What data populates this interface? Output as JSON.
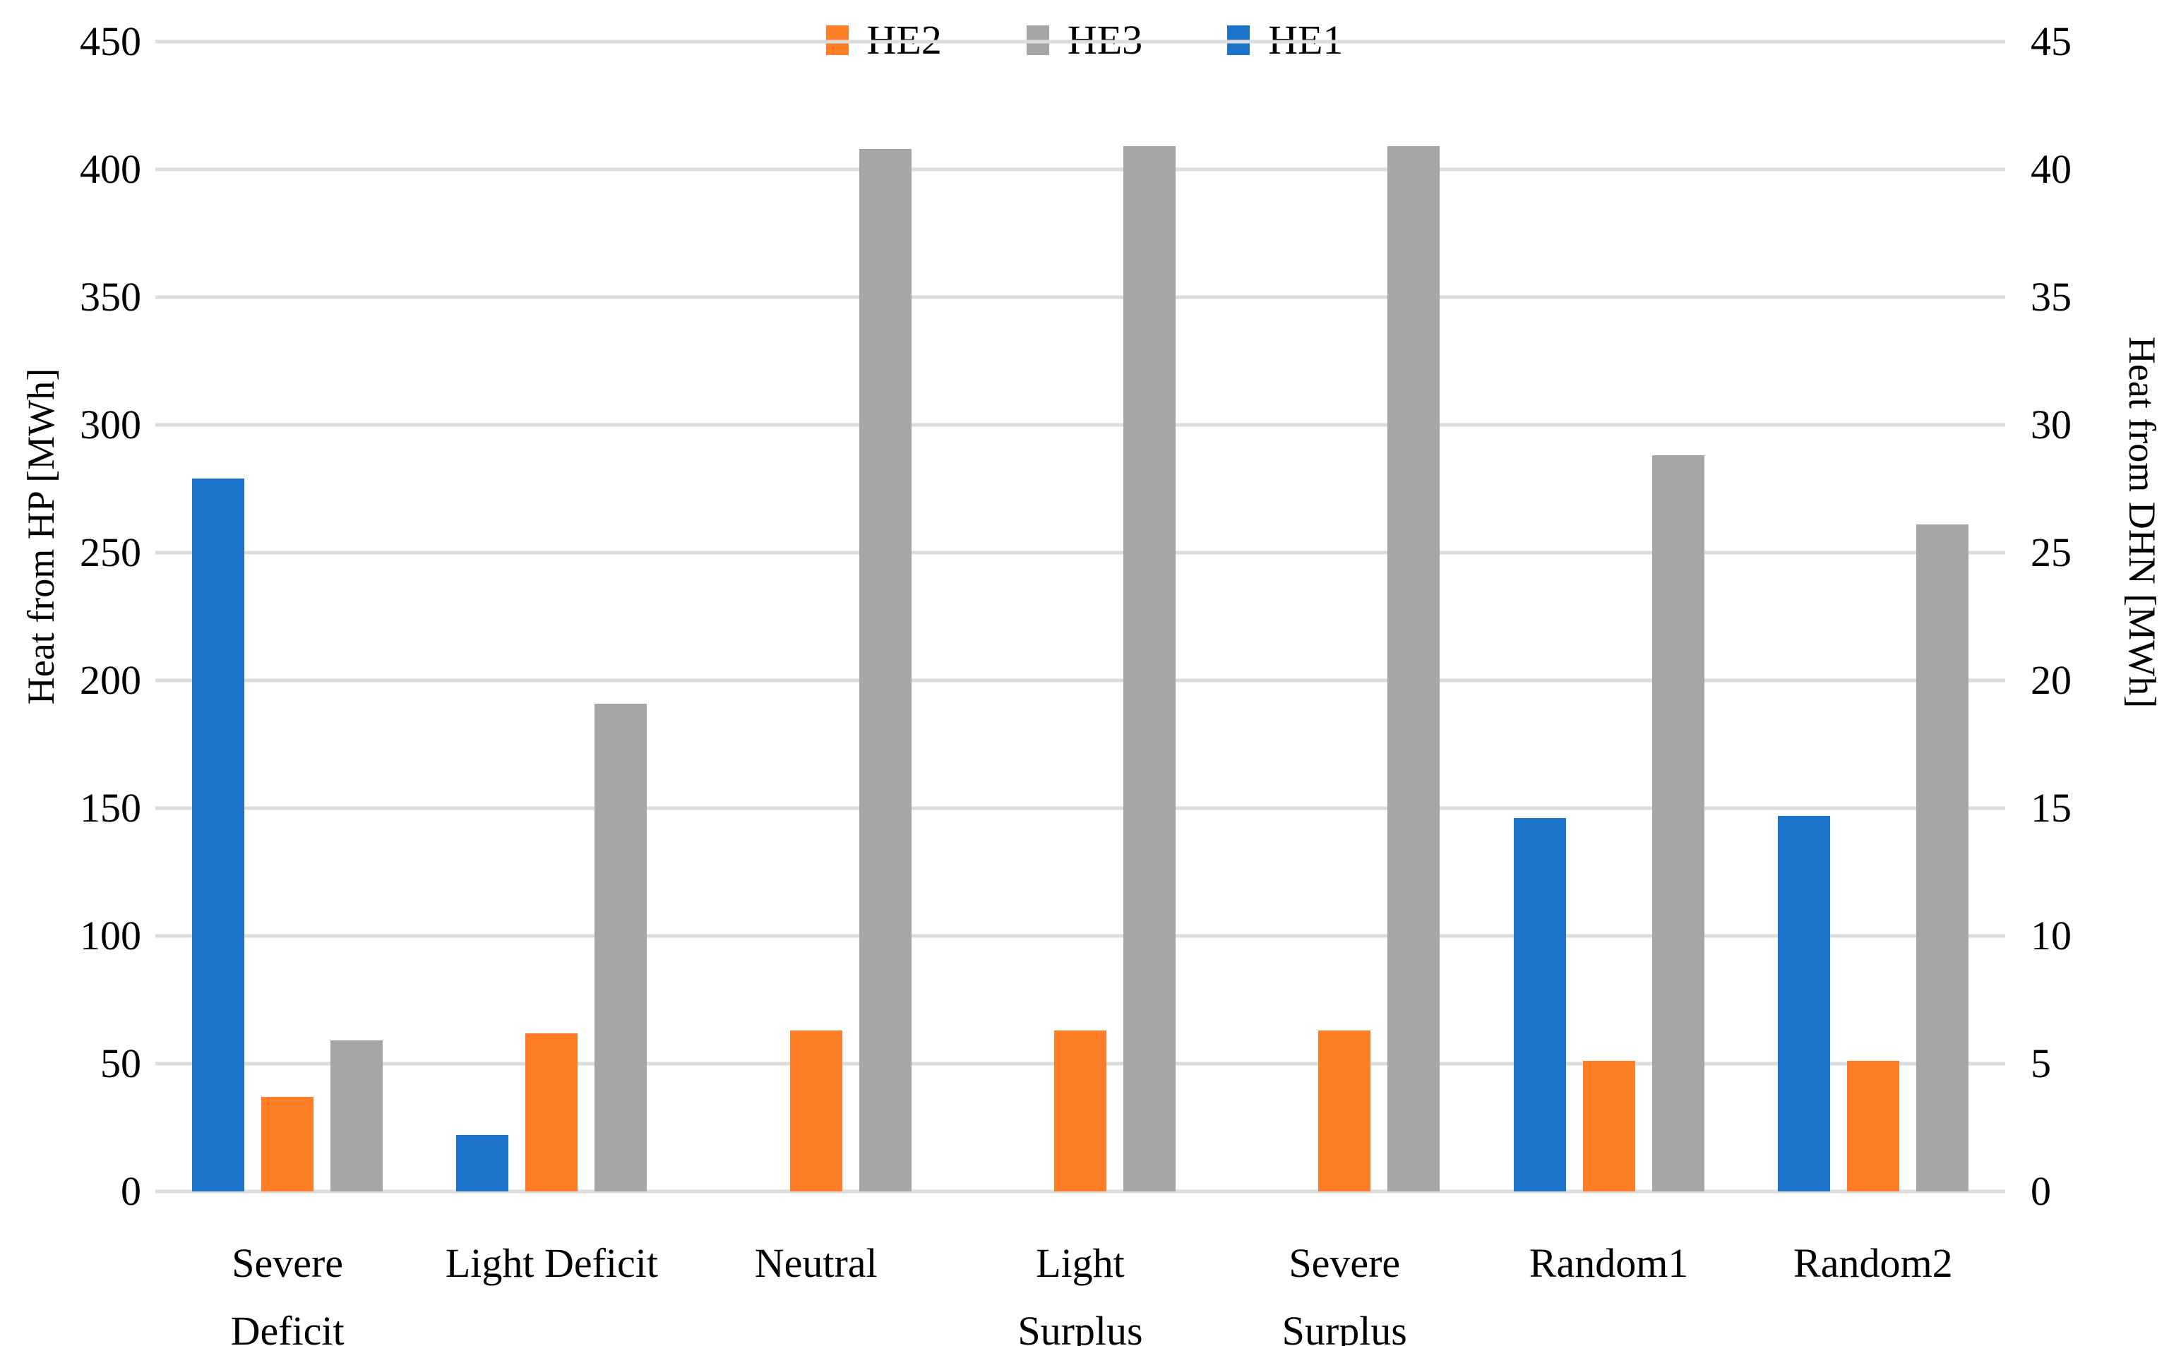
{
  "chart_data": {
    "type": "bar",
    "title": "",
    "categories": [
      "Severe Deficit",
      "Light Deficit",
      "Neutral",
      "Light Surplus",
      "Severe Surplus",
      "Random1",
      "Random2"
    ],
    "category_label_lines": [
      [
        "Severe",
        "Deficit"
      ],
      [
        "Light Deficit"
      ],
      [
        "Neutral"
      ],
      [
        "Light",
        "Surplus"
      ],
      [
        "Severe",
        "Surplus"
      ],
      [
        "Random1"
      ],
      [
        "Random2"
      ]
    ],
    "series": [
      {
        "name": "HE1",
        "color": "#1B74C9",
        "axis": "left",
        "values": [
          279,
          22,
          0,
          0,
          0,
          146,
          147
        ]
      },
      {
        "name": "HE2",
        "color": "#FD7E27",
        "axis": "left",
        "values": [
          37,
          62,
          63,
          63,
          63,
          51,
          51
        ]
      },
      {
        "name": "HE3",
        "color": "#A6A6A6",
        "axis": "right",
        "values": [
          5.9,
          19.1,
          40.8,
          40.9,
          40.9,
          28.8,
          26.1
        ]
      }
    ],
    "legend": {
      "position": "top-center",
      "entries": [
        {
          "label": "HE2",
          "color": "#FD7E27"
        },
        {
          "label": "HE3",
          "color": "#A6A6A6"
        },
        {
          "label": "HE1",
          "color": "#1B74C9"
        }
      ]
    },
    "left_axis": {
      "title": "Heat from HP [MWh]",
      "min": 0,
      "max": 450,
      "tick_step": 50,
      "ticks": [
        "450",
        "400",
        "350",
        "300",
        "250",
        "200",
        "150",
        "100",
        "50",
        "0"
      ]
    },
    "right_axis": {
      "title": "Heat from DHN [MWh]",
      "min": 0,
      "max": 45,
      "tick_step": 5,
      "ticks": [
        "45",
        "40",
        "35",
        "30",
        "25",
        "20",
        "15",
        "10",
        "5",
        "0"
      ]
    },
    "grid": true,
    "colors": {
      "gridline": "#DCDCDC",
      "text": "#000000",
      "background": "#FFFFFF"
    }
  }
}
